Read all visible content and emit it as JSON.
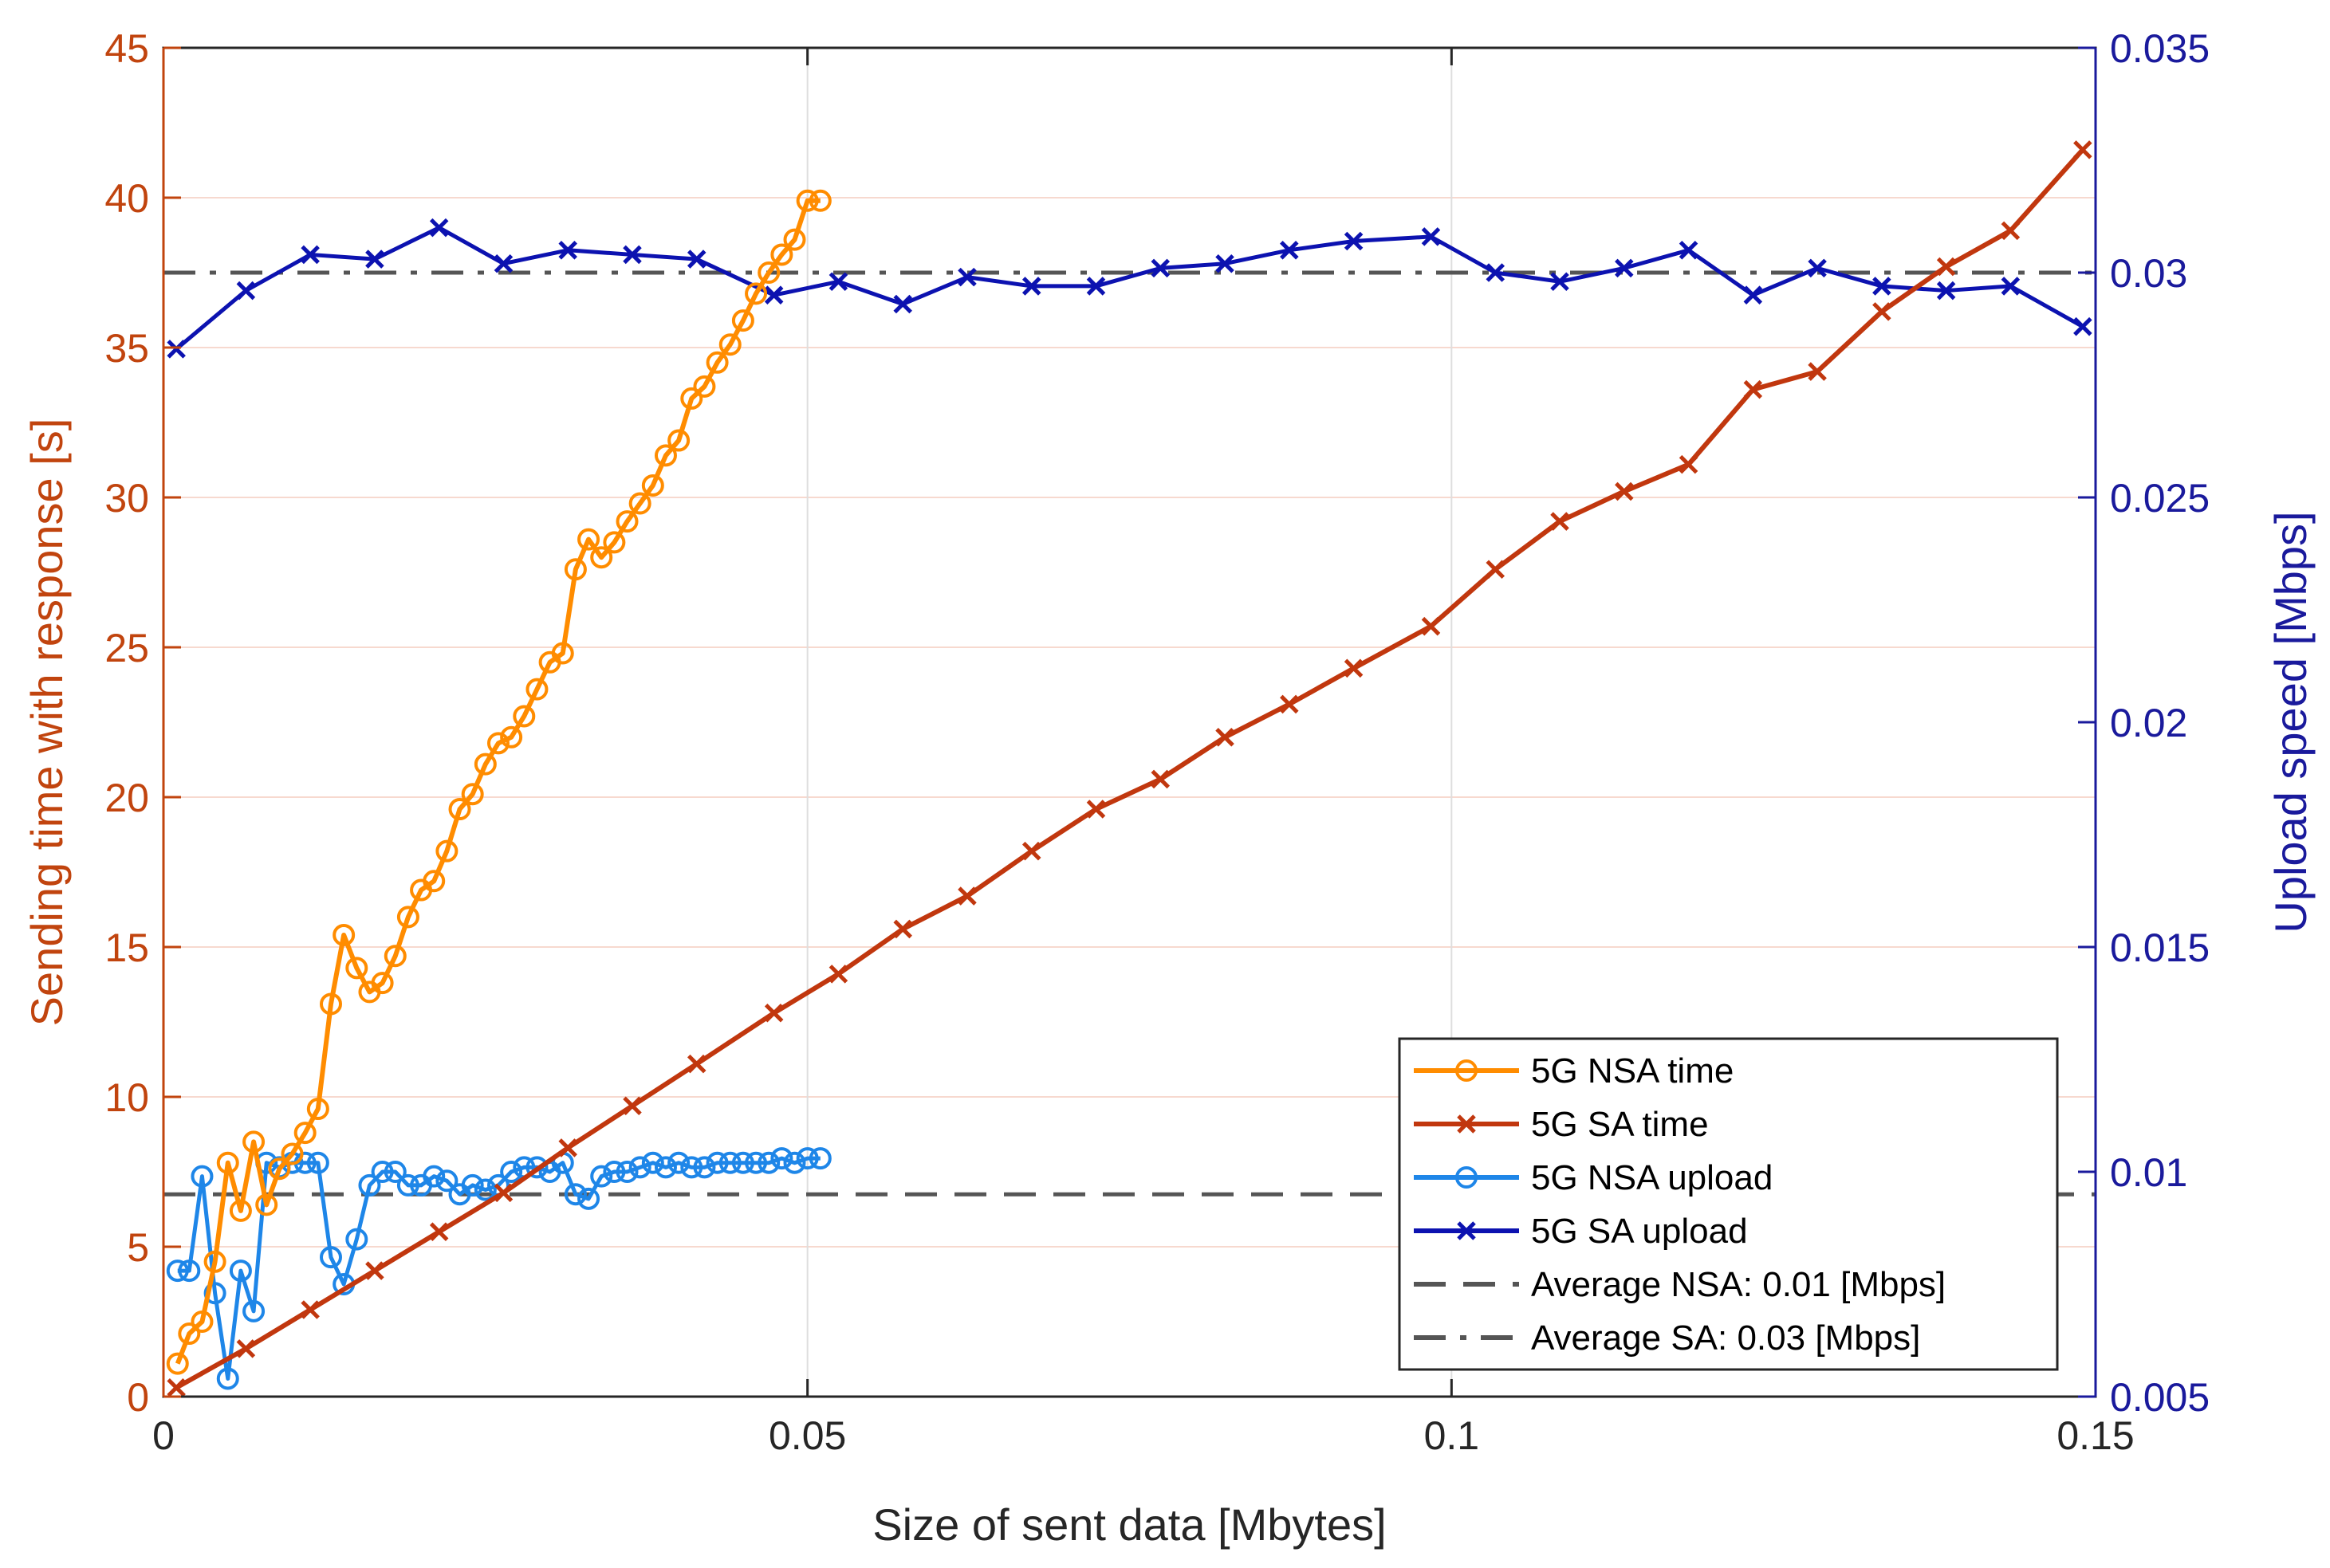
{
  "colors": {
    "left_axis": "#c1440e",
    "right_axis": "#1a1a9c",
    "nsa_time": "#ff8c00",
    "sa_time": "#c1370e",
    "nsa_upload": "#1e86e8",
    "sa_upload": "#0c12b0",
    "avg_lines": "#555555",
    "grid": "#dedede"
  },
  "chart_data": {
    "type": "line",
    "title": "",
    "xlabel": "Size of sent data [Mbytes]",
    "ylabel_left": "Sending time with response [s]",
    "ylabel_right": "Upload speed [Mbps]",
    "xlim": [
      0,
      0.15
    ],
    "ylim_left": [
      0,
      45
    ],
    "ylim_right": [
      0.005,
      0.035
    ],
    "x_ticks": [
      "0",
      "0.05",
      "0.1",
      "0.15"
    ],
    "x_tick_values": [
      0,
      0.05,
      0.1,
      0.15
    ],
    "y_left_ticks": [
      "0",
      "5",
      "10",
      "15",
      "20",
      "25",
      "30",
      "35",
      "40",
      "45"
    ],
    "y_left_tick_values": [
      0,
      5,
      10,
      15,
      20,
      25,
      30,
      35,
      40,
      45
    ],
    "y_right_ticks": [
      "0.005",
      "0.01",
      "0.015",
      "0.02",
      "0.025",
      "0.03",
      "0.035"
    ],
    "y_right_tick_values": [
      0.005,
      0.01,
      0.015,
      0.02,
      0.025,
      0.03,
      0.035
    ],
    "grid": true,
    "legend_position": "bottom-right",
    "series": [
      {
        "name": "5G NSA time",
        "axis": "left",
        "marker": "circle",
        "x": [
          0.0011,
          0.002,
          0.003,
          0.004,
          0.005,
          0.006,
          0.007,
          0.008,
          0.009,
          0.01,
          0.011,
          0.012,
          0.013,
          0.014,
          0.015,
          0.016,
          0.017,
          0.018,
          0.019,
          0.02,
          0.021,
          0.022,
          0.023,
          0.024,
          0.025,
          0.026,
          0.027,
          0.028,
          0.029,
          0.03,
          0.031,
          0.032,
          0.033,
          0.034,
          0.035,
          0.036,
          0.037,
          0.038,
          0.039,
          0.04,
          0.041,
          0.042,
          0.043,
          0.044,
          0.045,
          0.046,
          0.047,
          0.048,
          0.049,
          0.05,
          0.051
        ],
        "values": [
          1.1,
          2.1,
          2.5,
          4.5,
          7.8,
          6.2,
          8.5,
          6.4,
          7.6,
          8.1,
          8.8,
          9.6,
          13.1,
          15.4,
          14.3,
          13.5,
          13.8,
          14.7,
          16.0,
          16.9,
          17.2,
          18.2,
          19.6,
          20.1,
          21.1,
          21.8,
          22.0,
          22.7,
          23.6,
          24.5,
          24.8,
          27.6,
          28.6,
          28.0,
          28.5,
          29.2,
          29.8,
          30.4,
          31.4,
          31.9,
          33.3,
          33.7,
          34.5,
          35.1,
          35.9,
          36.8,
          37.5,
          38.1,
          38.6,
          39.9,
          39.9
        ]
      },
      {
        "name": "5G SA time",
        "axis": "left",
        "marker": "x",
        "x": [
          0.001,
          0.0064,
          0.0114,
          0.0164,
          0.0214,
          0.0264,
          0.0314,
          0.0364,
          0.0414,
          0.0474,
          0.0524,
          0.0574,
          0.0624,
          0.0674,
          0.0724,
          0.0774,
          0.0824,
          0.0874,
          0.0924,
          0.0984,
          0.1034,
          0.1084,
          0.1134,
          0.1184,
          0.1234,
          0.1284,
          0.1334,
          0.1384,
          0.1434,
          0.149
        ],
        "values": [
          0.3,
          1.6,
          2.9,
          4.2,
          5.5,
          6.8,
          8.3,
          9.7,
          11.1,
          12.8,
          14.1,
          15.6,
          16.7,
          18.2,
          19.6,
          20.6,
          22.0,
          23.1,
          24.3,
          25.7,
          27.6,
          29.2,
          30.2,
          31.1,
          33.6,
          34.2,
          36.2,
          37.7,
          38.9,
          41.6
        ]
      },
      {
        "name": "5G NSA upload",
        "axis": "right",
        "marker": "circle",
        "x": [
          0.0011,
          0.002,
          0.003,
          0.004,
          0.005,
          0.006,
          0.007,
          0.008,
          0.009,
          0.01,
          0.011,
          0.012,
          0.013,
          0.014,
          0.015,
          0.016,
          0.017,
          0.018,
          0.019,
          0.02,
          0.021,
          0.022,
          0.023,
          0.024,
          0.025,
          0.026,
          0.027,
          0.028,
          0.029,
          0.03,
          0.031,
          0.032,
          0.033,
          0.034,
          0.035,
          0.036,
          0.037,
          0.038,
          0.039,
          0.04,
          0.041,
          0.042,
          0.043,
          0.044,
          0.045,
          0.046,
          0.047,
          0.048,
          0.049,
          0.05,
          0.051
        ],
        "values": [
          0.0078,
          0.0078,
          0.0099,
          0.0073,
          0.0054,
          0.0078,
          0.0069,
          0.0102,
          0.0101,
          0.0102,
          0.0102,
          0.0102,
          0.0081,
          0.0075,
          0.0085,
          0.0097,
          0.01,
          0.01,
          0.0097,
          0.0097,
          0.0099,
          0.0098,
          0.0095,
          0.0097,
          0.0096,
          0.0097,
          0.01,
          0.0101,
          0.0101,
          0.01,
          0.0102,
          0.0095,
          0.0094,
          0.0099,
          0.01,
          0.01,
          0.0101,
          0.0102,
          0.0101,
          0.0102,
          0.0101,
          0.0101,
          0.0102,
          0.0102,
          0.0102,
          0.0102,
          0.0102,
          0.0103,
          0.0102,
          0.0103,
          0.0103
        ]
      },
      {
        "name": "5G SA upload",
        "axis": "right",
        "marker": "x",
        "x": [
          0.001,
          0.0064,
          0.0114,
          0.0164,
          0.0214,
          0.0264,
          0.0314,
          0.0364,
          0.0414,
          0.0474,
          0.0524,
          0.0574,
          0.0624,
          0.0674,
          0.0724,
          0.0774,
          0.0824,
          0.0874,
          0.0924,
          0.0984,
          0.1034,
          0.1084,
          0.1134,
          0.1184,
          0.1234,
          0.1284,
          0.1334,
          0.1384,
          0.1434,
          0.149
        ],
        "values": [
          0.0283,
          0.0296,
          0.0304,
          0.0303,
          0.031,
          0.0302,
          0.0305,
          0.0304,
          0.0303,
          0.0295,
          0.0298,
          0.0293,
          0.0299,
          0.0297,
          0.0297,
          0.0301,
          0.0302,
          0.0305,
          0.0307,
          0.0308,
          0.03,
          0.0298,
          0.0301,
          0.0305,
          0.0295,
          0.0301,
          0.0297,
          0.0296,
          0.0297,
          0.0288
        ]
      }
    ],
    "reference_lines": [
      {
        "name": "Average NSA: 0.01 [Mbps]",
        "axis": "right",
        "value": 0.0095,
        "style": "dashed"
      },
      {
        "name": "Average SA: 0.03 [Mbps]",
        "axis": "right",
        "value": 0.03,
        "style": "dashdot"
      }
    ]
  }
}
